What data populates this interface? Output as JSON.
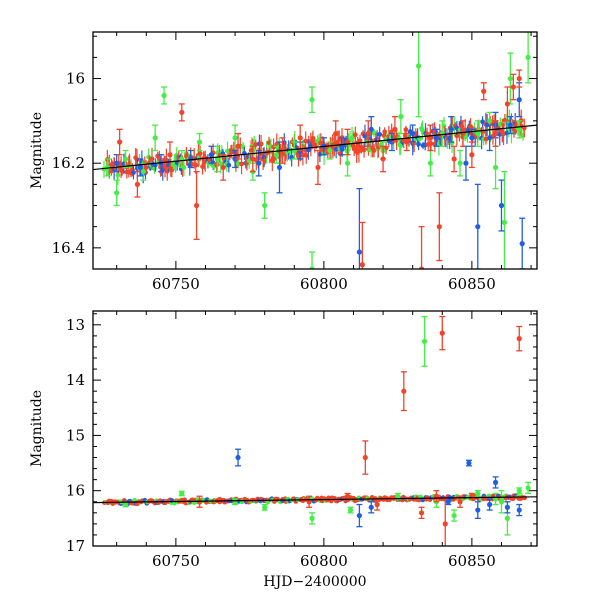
{
  "chart_data": [
    {
      "type": "scatter",
      "title": "",
      "xlabel": "",
      "ylabel": "Magnitude",
      "xlim": [
        60722,
        60872
      ],
      "ylim": [
        15.89,
        16.45
      ],
      "y_inverted": true,
      "xticks": [
        "60750",
        "60800",
        "60850"
      ],
      "yticks": [
        "16",
        "16.2",
        "16.4"
      ],
      "grid": false,
      "legend": "none",
      "colors": {
        "green": "#44ee44",
        "blue": "#1f5fe0",
        "red": "#f2442a",
        "trend": "#000000"
      },
      "trend": {
        "x": [
          60722,
          60872
        ],
        "y": [
          16.215,
          16.11
        ]
      },
      "series": [
        {
          "color": "green",
          "points": [
            [
              60727,
              16.21,
              0.02
            ],
            [
              60730,
              16.27,
              0.03
            ],
            [
              60733,
              16.19,
              0.02
            ],
            [
              60739,
              16.22,
              0.02
            ],
            [
              60743,
              16.14,
              0.03
            ],
            [
              60746,
              16.04,
              0.02
            ],
            [
              60752,
              16.19,
              0.02
            ],
            [
              60758,
              16.15,
              0.02
            ],
            [
              60764,
              16.19,
              0.03
            ],
            [
              60770,
              16.14,
              0.03
            ],
            [
              60776,
              16.22,
              0.02
            ],
            [
              60780,
              16.3,
              0.03
            ],
            [
              60784,
              16.18,
              0.02
            ],
            [
              60790,
              16.17,
              0.02
            ],
            [
              60796,
              16.05,
              0.03
            ],
            [
              60796,
              16.45,
              0.04
            ],
            [
              60802,
              16.17,
              0.02
            ],
            [
              60808,
              16.2,
              0.03
            ],
            [
              60815,
              16.15,
              0.02
            ],
            [
              60820,
              16.17,
              0.02
            ],
            [
              60826,
              16.09,
              0.04
            ],
            [
              60832,
              15.97,
              0.12
            ],
            [
              60836,
              16.2,
              0.03
            ],
            [
              60840,
              16.13,
              0.03
            ],
            [
              60846,
              16.2,
              0.03
            ],
            [
              60852,
              16.13,
              0.03
            ],
            [
              60856,
              16.1,
              0.02
            ],
            [
              60858,
              16.21,
              0.05
            ],
            [
              60861,
              16.34,
              0.12
            ],
            [
              60863,
              16.0,
              0.06
            ],
            [
              60866,
              16.12,
              0.02
            ],
            [
              60869,
              15.95,
              0.06
            ]
          ]
        },
        {
          "color": "blue",
          "points": [
            [
              60730,
              16.2,
              0.02
            ],
            [
              60738,
              16.21,
              0.02
            ],
            [
              60745,
              16.2,
              0.02
            ],
            [
              60755,
              16.19,
              0.02
            ],
            [
              60762,
              16.18,
              0.02
            ],
            [
              60770,
              16.19,
              0.02
            ],
            [
              60778,
              16.2,
              0.03
            ],
            [
              60785,
              16.21,
              0.06
            ],
            [
              60792,
              16.17,
              0.02
            ],
            [
              60800,
              16.16,
              0.02
            ],
            [
              60806,
              16.16,
              0.02
            ],
            [
              60812,
              16.41,
              0.15
            ],
            [
              60816,
              16.12,
              0.03
            ],
            [
              60823,
              16.15,
              0.02
            ],
            [
              60830,
              16.13,
              0.02
            ],
            [
              60838,
              16.14,
              0.02
            ],
            [
              60843,
              16.12,
              0.03
            ],
            [
              60848,
              16.2,
              0.04
            ],
            [
              60850,
              16.14,
              0.02
            ],
            [
              60852,
              16.35,
              0.1
            ],
            [
              60856,
              16.14,
              0.03
            ],
            [
              60858,
              16.11,
              0.03
            ],
            [
              60860,
              16.3,
              0.06
            ],
            [
              60863,
              16.11,
              0.02
            ],
            [
              60866,
              16.05,
              0.04
            ],
            [
              60867,
              16.39,
              0.06
            ]
          ]
        },
        {
          "color": "red",
          "points": [
            [
              60731,
              16.15,
              0.03
            ],
            [
              60737,
              16.25,
              0.03
            ],
            [
              60748,
              16.18,
              0.03
            ],
            [
              60752,
              16.08,
              0.02
            ],
            [
              60757,
              16.3,
              0.08
            ],
            [
              60766,
              16.21,
              0.03
            ],
            [
              60771,
              16.16,
              0.03
            ],
            [
              60776,
              16.19,
              0.03
            ],
            [
              60786,
              16.17,
              0.03
            ],
            [
              60792,
              16.14,
              0.03
            ],
            [
              60798,
              16.21,
              0.04
            ],
            [
              60804,
              16.13,
              0.03
            ],
            [
              60808,
              16.15,
              0.03
            ],
            [
              60813,
              16.44,
              0.1
            ],
            [
              60815,
              16.13,
              0.03
            ],
            [
              60820,
              16.19,
              0.03
            ],
            [
              60824,
              16.12,
              0.03
            ],
            [
              60828,
              16.15,
              0.02
            ],
            [
              60833,
              16.45,
              0.1
            ],
            [
              60836,
              16.14,
              0.03
            ],
            [
              60839,
              16.35,
              0.08
            ],
            [
              60844,
              16.19,
              0.03
            ],
            [
              60847,
              16.13,
              0.03
            ],
            [
              60850,
              16.18,
              0.03
            ],
            [
              60854,
              16.03,
              0.02
            ],
            [
              60858,
              16.13,
              0.03
            ],
            [
              60862,
              16.06,
              0.04
            ],
            [
              60864,
              16.02,
              0.03
            ],
            [
              60866,
              16.0,
              0.02
            ]
          ]
        }
      ]
    },
    {
      "type": "scatter",
      "title": "",
      "xlabel": "HJD−2400000",
      "ylabel": "Magnitude",
      "xlim": [
        60722,
        60872
      ],
      "ylim": [
        12.75,
        17.0
      ],
      "y_inverted": true,
      "xticks": [
        "60750",
        "60800",
        "60850"
      ],
      "yticks": [
        "13",
        "14",
        "15",
        "16",
        "17"
      ],
      "grid": false,
      "legend": "none",
      "colors": {
        "green": "#44ee44",
        "blue": "#1f5fe0",
        "red": "#f2442a",
        "trend": "#000000"
      },
      "trend": {
        "x": [
          60722,
          60872
        ],
        "y": [
          16.215,
          16.11
        ]
      },
      "series": [
        {
          "color": "green",
          "points": [
            [
              60733,
              16.25,
              0.04
            ],
            [
              60752,
              16.05,
              0.04
            ],
            [
              60770,
              16.2,
              0.05
            ],
            [
              60780,
              16.3,
              0.05
            ],
            [
              60796,
              16.5,
              0.1
            ],
            [
              60809,
              16.35,
              0.05
            ],
            [
              60825,
              16.1,
              0.05
            ],
            [
              60834,
              13.3,
              0.45
            ],
            [
              60838,
              16.2,
              0.1
            ],
            [
              60844,
              16.45,
              0.1
            ],
            [
              60852,
              16.05,
              0.05
            ],
            [
              60858,
              16.15,
              0.1
            ],
            [
              60860,
              16.2,
              0.2
            ],
            [
              60862,
              16.5,
              0.3
            ],
            [
              60866,
              16.0,
              0.05
            ],
            [
              60869,
              15.95,
              0.1
            ]
          ]
        },
        {
          "color": "blue",
          "points": [
            [
              60771,
              15.4,
              0.15
            ],
            [
              60812,
              16.45,
              0.2
            ],
            [
              60816,
              16.3,
              0.1
            ],
            [
              60842,
              16.2,
              0.05
            ],
            [
              60849,
              15.5,
              0.05
            ],
            [
              60852,
              16.35,
              0.15
            ],
            [
              60856,
              16.25,
              0.1
            ],
            [
              60858,
              15.85,
              0.1
            ],
            [
              60862,
              16.3,
              0.1
            ],
            [
              60866,
              16.35,
              0.1
            ]
          ]
        },
        {
          "color": "red",
          "points": [
            [
              60758,
              16.2,
              0.1
            ],
            [
              60795,
              16.2,
              0.1
            ],
            [
              60808,
              16.1,
              0.05
            ],
            [
              60814,
              15.4,
              0.3
            ],
            [
              60818,
              16.25,
              0.1
            ],
            [
              60827,
              14.2,
              0.35
            ],
            [
              60833,
              16.4,
              0.1
            ],
            [
              60838,
              16.1,
              0.1
            ],
            [
              60840,
              13.15,
              0.3
            ],
            [
              60841,
              16.6,
              0.45
            ],
            [
              60846,
              16.2,
              0.1
            ],
            [
              60850,
              16.1,
              0.05
            ],
            [
              60866,
              13.25,
              0.22
            ]
          ]
        }
      ]
    }
  ]
}
